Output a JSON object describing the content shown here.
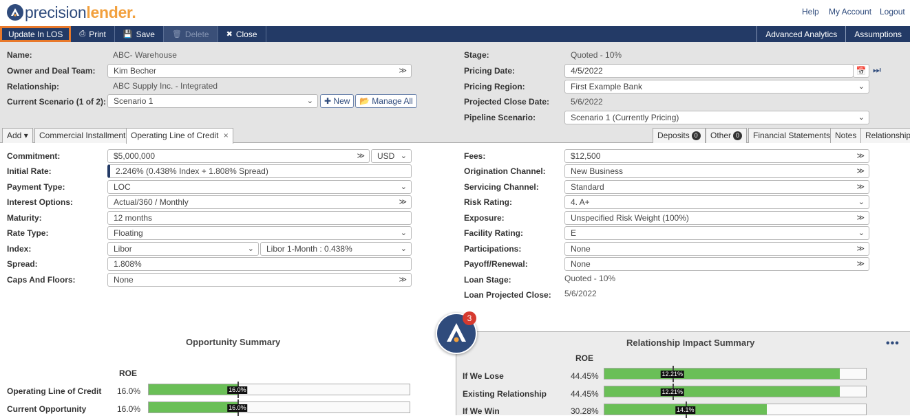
{
  "app": {
    "logo_part1": "precision",
    "logo_part2": "lender."
  },
  "toplinks": {
    "help": "Help",
    "account": "My Account",
    "logout": "Logout"
  },
  "toolbar": {
    "update": "Update In LOS",
    "print": "Print",
    "save": "Save",
    "delete": "Delete",
    "close": "Close",
    "advanced": "Advanced Analytics",
    "assumptions": "Assumptions"
  },
  "header": {
    "name_label": "Name:",
    "name_value": "ABC- Warehouse",
    "owner_label": "Owner and Deal Team:",
    "owner_value": "Kim Becher",
    "relationship_label": "Relationship:",
    "relationship_value": "ABC Supply Inc. - Integrated",
    "scenario_label": "Current Scenario (1 of 2):",
    "scenario_value": "Scenario 1",
    "new_button": "New",
    "manage_button": "Manage All",
    "stage_label": "Stage:",
    "stage_value": "Quoted - 10%",
    "pricing_date_label": "Pricing Date:",
    "pricing_date_value": "4/5/2022",
    "pricing_region_label": "Pricing Region:",
    "pricing_region_value": "First Example Bank",
    "close_date_label": "Projected Close Date:",
    "close_date_value": "5/6/2022",
    "pipeline_label": "Pipeline Scenario:",
    "pipeline_value": "Scenario 1 (Currently Pricing)"
  },
  "tabs": {
    "add": "Add",
    "t1": "Commercial Installment",
    "t2": "Operating Line of Credit",
    "deposits": "Deposits",
    "deposits_count": "0",
    "other": "Other",
    "other_count": "0",
    "financials": "Financial Statements",
    "notes": "Notes",
    "relationship": "Relationship"
  },
  "left_form": [
    {
      "label": "Commitment:",
      "value": "$5,000,000",
      "extra": "USD"
    },
    {
      "label": "Initial Rate:",
      "value": "2.246% (0.438% Index + 1.808% Spread)"
    },
    {
      "label": "Payment Type:",
      "value": "LOC"
    },
    {
      "label": "Interest Options:",
      "value": "Actual/360 / Monthly"
    },
    {
      "label": "Maturity:",
      "value": "12 months"
    },
    {
      "label": "Rate Type:",
      "value": "Floating"
    },
    {
      "label": "Index:",
      "value": "Libor",
      "extra": "Libor 1-Month : 0.438%"
    },
    {
      "label": "Spread:",
      "value": "1.808%"
    },
    {
      "label": "Caps And Floors:",
      "value": "None"
    }
  ],
  "right_form": [
    {
      "label": "Fees:",
      "value": "$12,500"
    },
    {
      "label": "Origination Channel:",
      "value": "New Business"
    },
    {
      "label": "Servicing Channel:",
      "value": "Standard"
    },
    {
      "label": "Risk Rating:",
      "value": "4. A+"
    },
    {
      "label": "Exposure:",
      "value": "Unspecified Risk Weight (100%)"
    },
    {
      "label": "Facility Rating:",
      "value": "E"
    },
    {
      "label": "Participations:",
      "value": "None"
    },
    {
      "label": "Payoff/Renewal:",
      "value": "None"
    },
    {
      "label": "Loan Stage:",
      "value": "Quoted - 10%"
    },
    {
      "label": "Loan Projected Close:",
      "value": "5/6/2022"
    }
  ],
  "opportunity": {
    "title": "Opportunity Summary",
    "col": "ROE",
    "rows": [
      {
        "label": "Operating Line of Credit",
        "roe": "16.0%",
        "pct": 0.34,
        "tag": "16.0%",
        "target": 0.34
      },
      {
        "label": "Current Opportunity",
        "roe": "16.0%",
        "pct": 0.34,
        "tag": "16.0%",
        "target": 0.34
      }
    ]
  },
  "impact": {
    "title": "Relationship Impact Summary",
    "col": "ROE",
    "notify_count": "3",
    "rows": [
      {
        "label": "If We Lose",
        "roe": "44.45%",
        "pct": 0.9,
        "tag": "12.21%",
        "target": 0.26
      },
      {
        "label": "Existing Relationship",
        "roe": "44.45%",
        "pct": 0.9,
        "tag": "12.21%",
        "target": 0.26
      },
      {
        "label": "If We Win",
        "roe": "30.28%",
        "pct": 0.62,
        "tag": "14.1%",
        "target": 0.31
      }
    ]
  },
  "colors": {
    "navy": "#233a66",
    "accent": "#e8792b",
    "bar": "#6abf57"
  }
}
